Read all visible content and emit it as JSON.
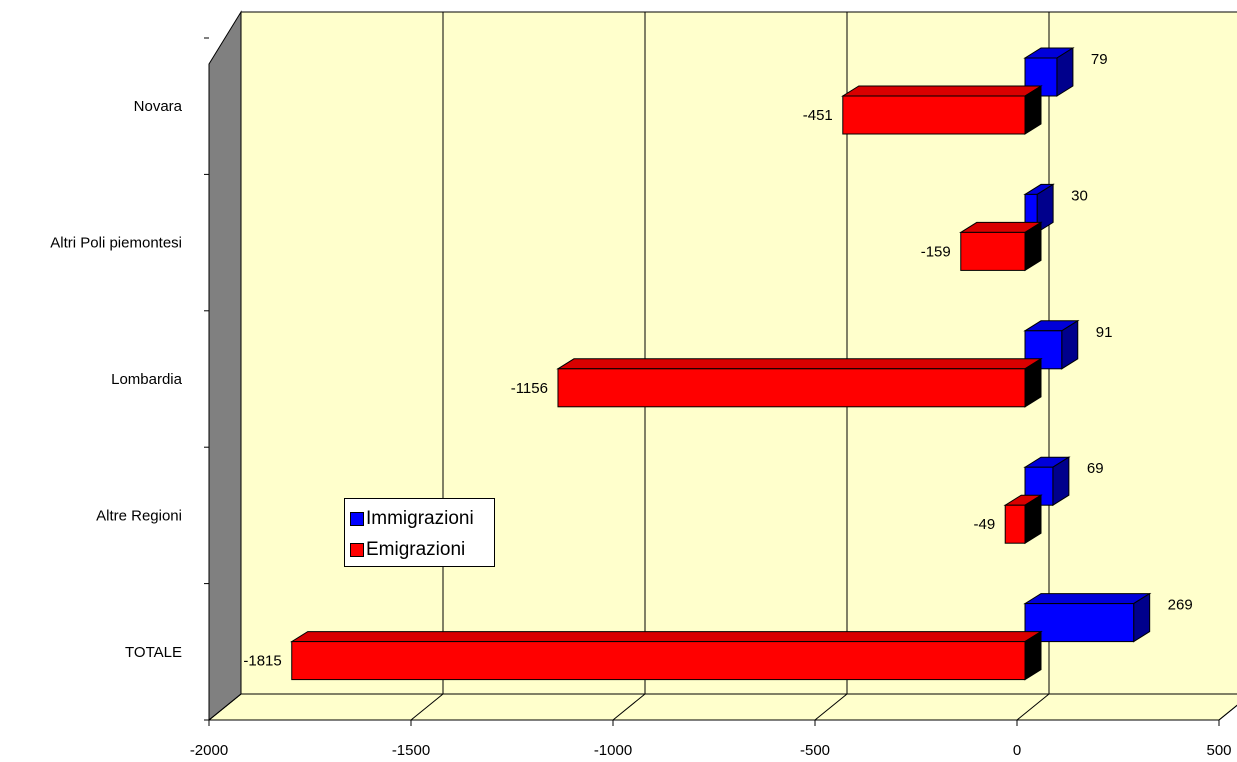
{
  "chart_data": {
    "type": "bar",
    "orientation": "horizontal",
    "three_d": true,
    "categories": [
      "Novara",
      "Altri Poli piemontesi",
      "Lombardia",
      "Altre Regioni",
      "TOTALE"
    ],
    "series": [
      {
        "name": "Immigrazioni",
        "color": "#0000ff",
        "values": [
          79,
          30,
          91,
          69,
          269
        ]
      },
      {
        "name": "Emigrazioni",
        "color": "#ff0000",
        "values": [
          -451,
          -159,
          -1156,
          -49,
          -1815
        ]
      }
    ],
    "xlim": [
      -2000,
      500
    ],
    "xticks": [
      "-2000",
      "-1500",
      "-1000",
      "-500",
      "0",
      "500"
    ],
    "title": "",
    "xlabel": "",
    "ylabel": "",
    "grid": true,
    "wall_color": "#ffffcc",
    "legend_position": "lower-left inside plot"
  }
}
